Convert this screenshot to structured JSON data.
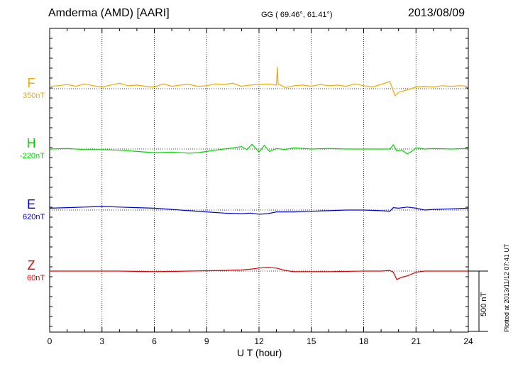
{
  "header": {
    "station": "Amderma (AMD)  [AARI]",
    "coords": "GG ( 69.46°,  61.41°)",
    "date": "2013/08/09"
  },
  "footer": {
    "plotted": "Plotted at 2013/11/12 07:41 UT"
  },
  "chart_data": {
    "type": "line",
    "xlabel": "U T (hour)",
    "xlim": [
      0,
      24
    ],
    "xticks": [
      "0",
      "3",
      "6",
      "9",
      "12",
      "15",
      "18",
      "21",
      "24"
    ],
    "scale_bar": {
      "value": 500,
      "label": "500 nT"
    },
    "series": [
      {
        "name": "F",
        "baseline": "350nT",
        "color": "#f5a800",
        "x": [
          0,
          0.5,
          1,
          1.5,
          2,
          2.5,
          3,
          3.5,
          4,
          4.5,
          5,
          5.5,
          6,
          6.5,
          7,
          7.5,
          8,
          8.5,
          9,
          9.5,
          10,
          10.5,
          11,
          11.5,
          12,
          12.5,
          13,
          13.05,
          13.1,
          13.5,
          14,
          14.5,
          15,
          15.5,
          16,
          16.5,
          17,
          17.5,
          18,
          18.5,
          19,
          19.5,
          19.8,
          20,
          20.5,
          21,
          21.5,
          22,
          22.5,
          23,
          23.5,
          24
        ],
        "y": [
          20,
          25,
          35,
          20,
          40,
          25,
          15,
          30,
          45,
          25,
          30,
          20,
          15,
          40,
          20,
          30,
          35,
          20,
          25,
          40,
          35,
          45,
          20,
          30,
          35,
          40,
          30,
          180,
          40,
          10,
          25,
          30,
          20,
          35,
          25,
          30,
          20,
          40,
          25,
          15,
          35,
          60,
          -60,
          -30,
          -10,
          15,
          20,
          15,
          25,
          20,
          25,
          20
        ]
      },
      {
        "name": "H",
        "baseline": "-220nT",
        "color": "#00d800",
        "x": [
          0,
          1,
          2,
          3,
          4,
          5,
          6,
          7,
          8,
          8.5,
          9,
          9.5,
          10,
          10.5,
          11,
          11.3,
          11.6,
          12,
          12.3,
          12.6,
          13,
          13.5,
          14,
          15,
          16,
          17,
          18,
          19,
          19.5,
          19.7,
          19.9,
          20.2,
          20.5,
          20.8,
          21,
          21.5,
          22,
          23,
          24
        ],
        "y": [
          0,
          5,
          -5,
          -5,
          -10,
          -20,
          -30,
          -25,
          -35,
          -30,
          -20,
          -10,
          0,
          10,
          20,
          -5,
          40,
          -25,
          30,
          -20,
          5,
          -5,
          10,
          0,
          5,
          0,
          0,
          0,
          0,
          35,
          -15,
          -10,
          -40,
          -15,
          10,
          0,
          5,
          0,
          5
        ]
      },
      {
        "name": "E",
        "baseline": "620nT",
        "color": "#0000d0",
        "x": [
          0,
          1,
          2,
          3,
          4,
          5,
          6,
          7,
          8,
          9,
          10,
          11,
          11.5,
          12,
          12.5,
          13,
          14,
          15,
          16,
          17,
          18,
          19,
          19.5,
          19.7,
          20,
          20.5,
          21,
          21.5,
          22,
          23,
          24
        ],
        "y": [
          15,
          20,
          25,
          30,
          25,
          20,
          15,
          5,
          -5,
          -15,
          -25,
          -30,
          -25,
          -35,
          -30,
          -15,
          -15,
          -10,
          -5,
          0,
          0,
          -5,
          -10,
          20,
          15,
          25,
          15,
          0,
          5,
          10,
          15
        ]
      },
      {
        "name": "Z",
        "baseline": "60nT",
        "color": "#e00000",
        "x": [
          0,
          2,
          4,
          6,
          8,
          10,
          11,
          11.5,
          12,
          12.5,
          13,
          13.5,
          14,
          15,
          16,
          18,
          19,
          19.5,
          19.7,
          19.9,
          20.2,
          20.5,
          21,
          21.5,
          22,
          23,
          24
        ],
        "y": [
          0,
          0,
          0,
          -5,
          0,
          5,
          10,
          15,
          25,
          30,
          25,
          5,
          -5,
          -5,
          -5,
          0,
          0,
          5,
          -10,
          -70,
          -50,
          -40,
          -10,
          0,
          0,
          0,
          0
        ]
      }
    ]
  }
}
